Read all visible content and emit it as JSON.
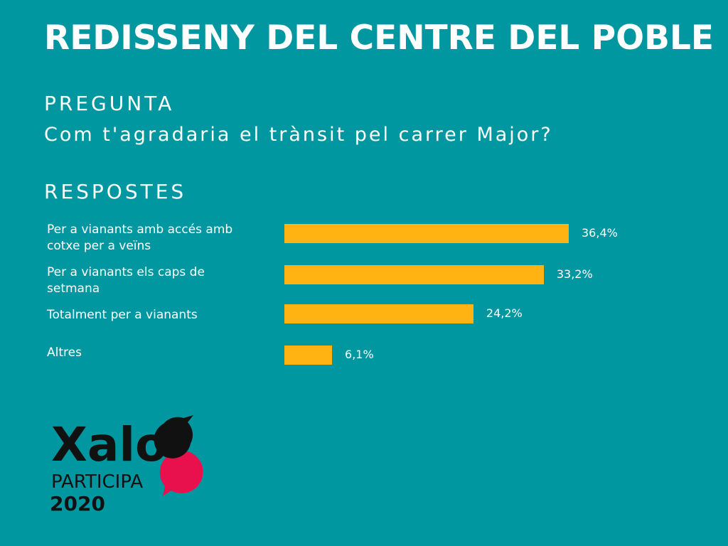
{
  "header": {
    "title": "REDISSENY DEL CENTRE DEL POBLE"
  },
  "question": {
    "label": "PREGUNTA",
    "text": "Com t'agradaria el trànsit pel carrer Major?"
  },
  "answers_section": {
    "label": "RESPOSTES"
  },
  "logo": {
    "name": "Xalo",
    "subtitle": "PARTICIPA",
    "year": "2020"
  },
  "colors": {
    "background": "#0097a0",
    "bar": "#ffb313",
    "accent": "#e8114e"
  },
  "chart_data": {
    "type": "bar",
    "orientation": "horizontal",
    "categories": [
      "Per a vianants amb accés amb cotxe per a veïns",
      "Per a vianants els caps de setmana",
      "Totalment per a vianants",
      "Altres"
    ],
    "values": [
      36.4,
      33.2,
      24.2,
      6.1
    ],
    "value_labels": [
      "36,4%",
      "33,2%",
      "24,2%",
      "6,1%"
    ],
    "unit": "%",
    "grid": false,
    "legend": "none"
  }
}
